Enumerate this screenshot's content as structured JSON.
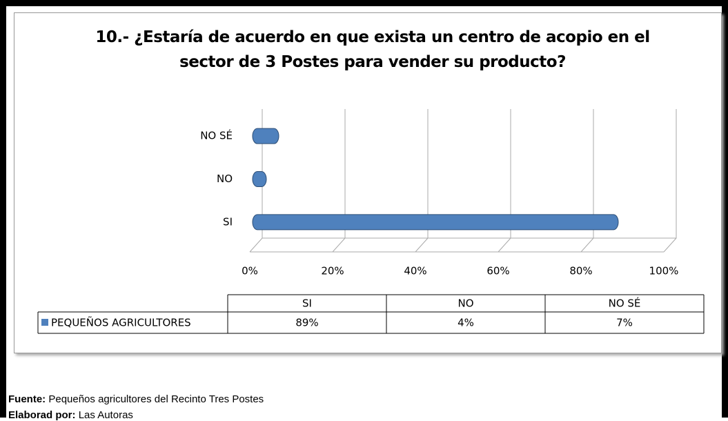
{
  "chart_data": {
    "type": "bar",
    "orientation": "horizontal",
    "title": "10.- ¿Estaría de acuerdo en que exista un centro de acopio en el sector de 3 Postes para vender su producto?",
    "categories": [
      "SI",
      "NO",
      "NO SÉ"
    ],
    "series": [
      {
        "name": "PEQUEÑOS AGRICULTORES",
        "color": "#4f81bd",
        "values": [
          89,
          4,
          7
        ],
        "value_labels": [
          "89%",
          "4%",
          "7%"
        ]
      }
    ],
    "xlim": [
      0,
      100
    ],
    "xticks": [
      {
        "value": 0,
        "label": "0%"
      },
      {
        "value": 20,
        "label": "20%"
      },
      {
        "value": 40,
        "label": "40%"
      },
      {
        "value": 60,
        "label": "60%"
      },
      {
        "value": 80,
        "label": "80%"
      },
      {
        "value": 100,
        "label": "100%"
      }
    ],
    "grid": true
  },
  "footer": [
    {
      "label": "Fuente:",
      "text": "Pequeños agricultores del Recinto Tres Postes"
    },
    {
      "label": "Elaborad por:",
      "text": "Las Autoras"
    }
  ]
}
